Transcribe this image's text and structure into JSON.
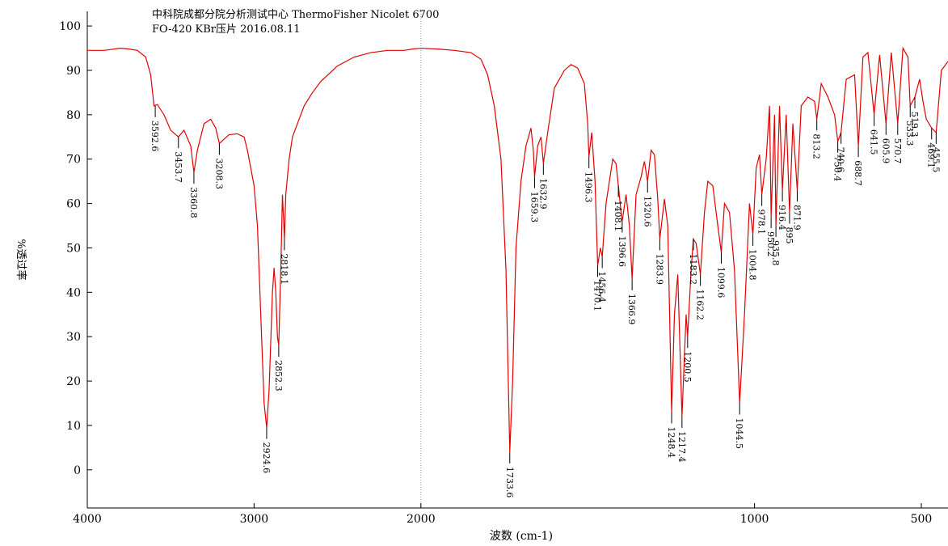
{
  "chart_data": {
    "type": "line",
    "title": "中科院成都分院分析测试中心 ThermoFisher Nicolet 6700",
    "subtitle": "FO-420  KBr压片  2016.08.11",
    "xlabel": "波数 (cm-1)",
    "ylabel": "%透过率",
    "color": "#e00000",
    "xlim": [
      4000,
      420
    ],
    "xscale_break": {
      "at": 2000,
      "factor": 2
    },
    "xticks": [
      4000,
      3000,
      2000,
      1000,
      500
    ],
    "ylim": [
      -8.6,
      103.3
    ],
    "yticks": [
      0,
      10,
      20,
      30,
      40,
      50,
      60,
      70,
      80,
      90,
      100
    ],
    "x": [
      4000,
      3900,
      3800,
      3750,
      3700,
      3650,
      3620,
      3600,
      3580,
      3540,
      3500,
      3453.7,
      3420,
      3380,
      3360.8,
      3340,
      3300,
      3260,
      3230,
      3208.3,
      3180,
      3150,
      3100,
      3060,
      3040,
      3000,
      2980,
      2960,
      2940,
      2924.6,
      2910,
      2890,
      2880,
      2870,
      2860,
      2852.3,
      2840,
      2830,
      2818.1,
      2810,
      2790,
      2770,
      2740,
      2700,
      2650,
      2600,
      2500,
      2400,
      2300,
      2200,
      2100,
      2050,
      2000,
      1950,
      1900,
      1850,
      1820,
      1800,
      1780,
      1760,
      1745,
      1733.6,
      1725,
      1715,
      1700,
      1685,
      1670,
      1663,
      1659.3,
      1650,
      1640,
      1632.9,
      1620,
      1600,
      1570,
      1550,
      1530,
      1510,
      1500,
      1496.3,
      1488,
      1478,
      1470.1,
      1462,
      1456.4,
      1445,
      1425,
      1415,
      1408.1,
      1400,
      1396.6,
      1385,
      1375,
      1366.9,
      1355,
      1340,
      1330,
      1320.6,
      1310,
      1300,
      1290,
      1283.9,
      1270,
      1260,
      1248.4,
      1240,
      1230,
      1217.4,
      1205,
      1200.5,
      1190,
      1183.2,
      1175,
      1162.2,
      1150,
      1140,
      1125,
      1110,
      1099.6,
      1090,
      1075,
      1060,
      1044.5,
      1030,
      1015,
      1004.8,
      995,
      985,
      978.1,
      965,
      955,
      950.2,
      940,
      935.8,
      925,
      916.4,
      905,
      895.0,
      885,
      871.9,
      860,
      840,
      820,
      813.2,
      800,
      780,
      760,
      750.4,
      740.6,
      725,
      700,
      688.7,
      675,
      660,
      641.5,
      625,
      605.9,
      590,
      570.7,
      555,
      540,
      533.3,
      519.3,
      505,
      495,
      485,
      469.1,
      455.5,
      440,
      420
    ],
    "values": [
      94.5,
      94.5,
      95,
      94.8,
      94.5,
      93,
      89,
      82,
      82.3,
      80,
      76.5,
      75,
      76.5,
      73,
      67,
      72,
      78,
      79,
      77,
      73.5,
      74.5,
      75.5,
      75.7,
      75,
      72,
      64,
      55,
      35,
      15,
      9.5,
      18,
      40,
      45.5,
      40,
      30,
      28,
      45,
      62,
      52,
      62,
      70,
      75,
      78,
      82,
      85,
      87.5,
      91,
      93,
      94,
      94.5,
      94.5,
      94.8,
      95,
      94.8,
      94.5,
      94,
      92.5,
      89,
      82,
      70,
      45,
      4,
      20,
      50,
      65,
      73,
      77,
      72,
      66,
      73,
      75,
      69,
      76,
      86,
      90,
      91.3,
      90.5,
      87,
      78,
      70.5,
      76,
      65,
      46,
      50,
      48,
      60,
      70,
      69,
      64,
      58,
      56,
      62,
      55,
      43,
      62,
      66,
      69.5,
      65,
      72,
      71,
      61,
      52,
      61,
      55,
      13,
      35,
      44,
      12,
      35,
      30,
      45,
      52,
      51,
      44,
      58,
      65,
      64,
      55,
      49,
      60,
      58,
      45,
      15,
      35,
      60,
      53,
      68,
      71,
      62,
      70,
      82,
      57,
      80,
      55,
      82,
      63,
      80,
      58,
      78,
      63,
      82,
      84,
      83,
      79,
      87,
      84,
      80,
      74,
      76,
      88,
      89,
      73,
      93,
      94,
      80,
      93.5,
      78,
      94,
      78,
      95,
      93,
      82,
      84,
      88,
      83,
      79,
      77,
      76,
      90,
      92
    ],
    "peaks": {
      "x": [
        3592.6,
        3453.7,
        3360.8,
        3208.3,
        2924.6,
        2852.3,
        2818.1,
        1733.6,
        1659.3,
        1632.9,
        1496.3,
        1470.1,
        1456.4,
        1408.1,
        1396.6,
        1366.9,
        1320.6,
        1283.9,
        1248.4,
        1217.4,
        1200.5,
        1183.2,
        1162.2,
        1099.6,
        1044.5,
        1004.8,
        978.1,
        950.2,
        935.8,
        916.4,
        895.0,
        871.9,
        813.2,
        750.4,
        740.6,
        688.7,
        641.5,
        605.9,
        570.7,
        533.3,
        519.3,
        469.1,
        455.5
      ],
      "values": [
        82,
        75,
        67,
        73.5,
        9.5,
        28,
        52,
        4,
        66,
        69,
        70.5,
        46,
        48,
        64,
        56,
        43,
        65,
        52,
        13,
        12,
        30,
        52,
        44,
        49,
        15,
        53,
        62,
        57,
        55,
        63,
        58,
        63,
        79,
        74,
        76,
        73,
        80,
        78,
        78,
        82,
        84,
        77,
        76
      ]
    }
  }
}
